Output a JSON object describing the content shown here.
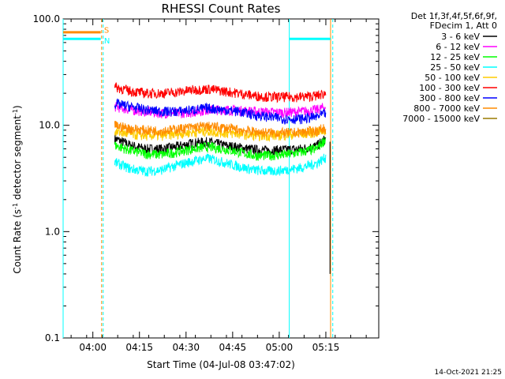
{
  "chart_data": {
    "type": "line",
    "title": "RHESSI Count Rates",
    "xlabel": "Start Time (04-Jul-08 03:47:02)",
    "ylabel_parts": {
      "prefix": "Count Rate (s",
      "exp": "-1",
      "middle": " detector segment",
      "exp2": "-1",
      "suffix": ")"
    },
    "y_scale": "log",
    "ylim": [
      0.1,
      100.0
    ],
    "y_ticks": [
      {
        "value": 0.1,
        "label": "0.1"
      },
      {
        "value": 1.0,
        "label": "1.0"
      },
      {
        "value": 10.0,
        "label": "10.0"
      },
      {
        "value": 100.0,
        "label": "100.0"
      }
    ],
    "xlim_minutes": [
      3.4,
      105.0
    ],
    "x_ticks": [
      {
        "minute": 12.97,
        "label": "04:00"
      },
      {
        "minute": 27.97,
        "label": "04:15"
      },
      {
        "minute": 42.97,
        "label": "04:30"
      },
      {
        "minute": 57.97,
        "label": "04:45"
      },
      {
        "minute": 72.97,
        "label": "05:00"
      },
      {
        "minute": 87.97,
        "label": "05:15"
      }
    ],
    "legend": {
      "header": [
        "Det 1f,3f,4f,5f,6f,9f,",
        "FDecim 1, Att 0"
      ],
      "placement": "right"
    },
    "series": [
      {
        "name": "3 - 6 keV",
        "color": "#000000",
        "x": [
          20,
          25,
          30,
          35,
          40,
          45,
          50,
          55,
          60,
          65,
          70,
          75,
          80,
          85,
          88
        ],
        "y": [
          7.5,
          6.5,
          6.0,
          6.0,
          6.3,
          6.8,
          7.0,
          6.5,
          6.2,
          5.9,
          5.8,
          5.9,
          6.0,
          6.4,
          7.5
        ]
      },
      {
        "name": "6 - 12 keV",
        "color": "#ff00ff",
        "x": [
          20,
          25,
          30,
          35,
          40,
          45,
          50,
          55,
          60,
          65,
          70,
          75,
          80,
          85,
          88
        ],
        "y": [
          15,
          14,
          13.5,
          13,
          13,
          13.3,
          14,
          14,
          13.8,
          13.5,
          13.3,
          13.2,
          13.5,
          14,
          15
        ]
      },
      {
        "name": "12 - 25 keV",
        "color": "#00ff00",
        "x": [
          20,
          25,
          30,
          35,
          40,
          45,
          50,
          55,
          60,
          65,
          70,
          75,
          80,
          85,
          88
        ],
        "y": [
          6.5,
          5.8,
          5.4,
          5.3,
          5.6,
          6.0,
          6.3,
          6.0,
          5.6,
          5.2,
          5.2,
          5.3,
          5.6,
          6.0,
          7.5
        ]
      },
      {
        "name": "25 - 50 keV",
        "color": "#00ffff",
        "x": [
          20,
          25,
          30,
          35,
          40,
          45,
          50,
          55,
          60,
          65,
          70,
          75,
          80,
          85,
          88
        ],
        "y": [
          4.5,
          3.9,
          3.7,
          3.8,
          4.2,
          4.6,
          4.9,
          4.5,
          4.1,
          3.8,
          3.7,
          3.8,
          4.0,
          4.4,
          5.0
        ]
      },
      {
        "name": "50 - 100 keV",
        "color": "#ffcc00",
        "x": [
          20,
          25,
          30,
          35,
          40,
          45,
          50,
          55,
          60,
          65,
          70,
          75,
          80,
          85,
          88
        ],
        "y": [
          8.8,
          8.2,
          8.0,
          8.0,
          8.3,
          8.6,
          8.8,
          8.5,
          8.3,
          8.0,
          8.0,
          8.1,
          8.3,
          8.6,
          9.0
        ]
      },
      {
        "name": "100 - 300 keV",
        "color": "#ff0000",
        "x": [
          20,
          25,
          30,
          35,
          40,
          45,
          50,
          55,
          60,
          65,
          70,
          75,
          80,
          85,
          88
        ],
        "y": [
          23,
          21,
          20,
          20,
          20.5,
          21.5,
          22,
          21,
          20,
          19,
          18.5,
          18.5,
          18.5,
          19,
          20
        ]
      },
      {
        "name": "300 - 800 keV",
        "color": "#0000ff",
        "x": [
          20,
          25,
          30,
          35,
          40,
          45,
          50,
          55,
          60,
          65,
          70,
          75,
          80,
          85,
          88
        ],
        "y": [
          16,
          15,
          14,
          13.5,
          13.5,
          14,
          14.5,
          14,
          13.5,
          12.5,
          12,
          11.5,
          11.5,
          12,
          13
        ]
      },
      {
        "name": "800 - 7000 keV",
        "color": "#ff8c00",
        "x": [
          20,
          25,
          30,
          35,
          40,
          45,
          50,
          55,
          60,
          65,
          70,
          75,
          80,
          85,
          88
        ],
        "y": [
          10,
          9.3,
          9.0,
          8.9,
          9.2,
          9.6,
          9.8,
          9.5,
          9.1,
          8.7,
          8.5,
          8.5,
          8.6,
          8.9,
          9.5
        ]
      },
      {
        "name": "7000 - 15000 keV",
        "color": "#9a7a00",
        "x": [
          20,
          88
        ],
        "y": [
          null,
          null
        ]
      }
    ],
    "attenuator_overlay": {
      "color_orange": "#ff8c00",
      "color_cyan": "#00ffff",
      "orange_segment": {
        "x": [
          3.4,
          15.5
        ],
        "y": 75
      },
      "cyan_segments": [
        {
          "x": [
            3.4,
            15.5
          ],
          "y": 65
        },
        {
          "x": [
            76.2,
            89.5
          ],
          "y": 65
        }
      ],
      "vertical_lines_minutes": [
        3.4,
        15.8,
        16.3,
        76.2,
        89.5,
        90.2
      ],
      "flags": [
        {
          "text": "S",
          "color": "#ff8c00",
          "y": 78
        },
        {
          "text": "N",
          "color": "#00ffff",
          "y": 62
        }
      ]
    },
    "footer": "14-Oct-2021 21:25"
  }
}
